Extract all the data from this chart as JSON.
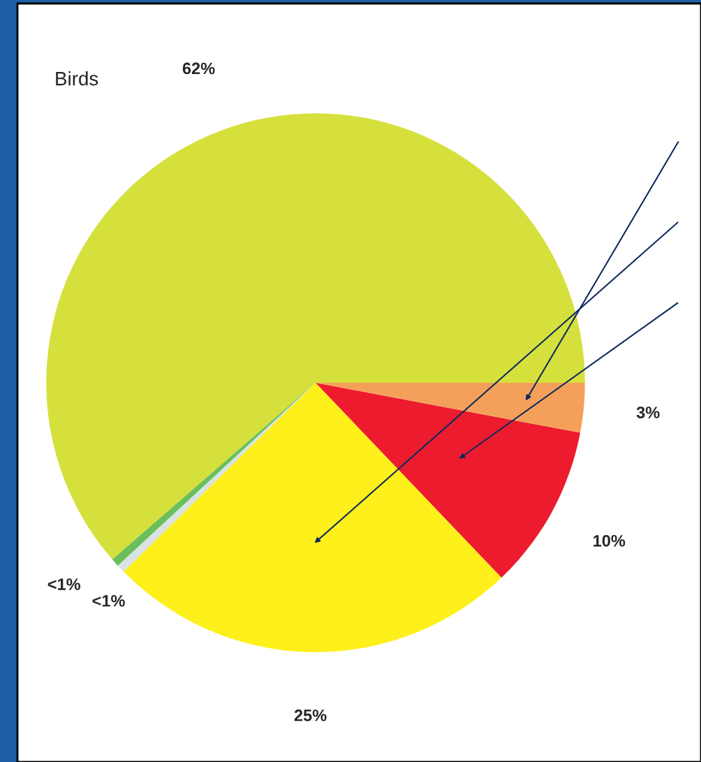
{
  "chart_data": {
    "type": "pie",
    "title": "Birds",
    "categories": [
      null,
      null,
      null,
      null,
      null,
      null
    ],
    "values": [
      62,
      0.5,
      0.5,
      25,
      10,
      3
    ],
    "value_labels": [
      "62%",
      "<1%",
      "<1%",
      "25%",
      "10%",
      "3%"
    ],
    "colors": [
      "#d6e03c",
      "#6abf5a",
      "#d9e3e3",
      "#fef01a",
      "#ec1c2e",
      "#f5a05a"
    ],
    "legend": false
  }
}
